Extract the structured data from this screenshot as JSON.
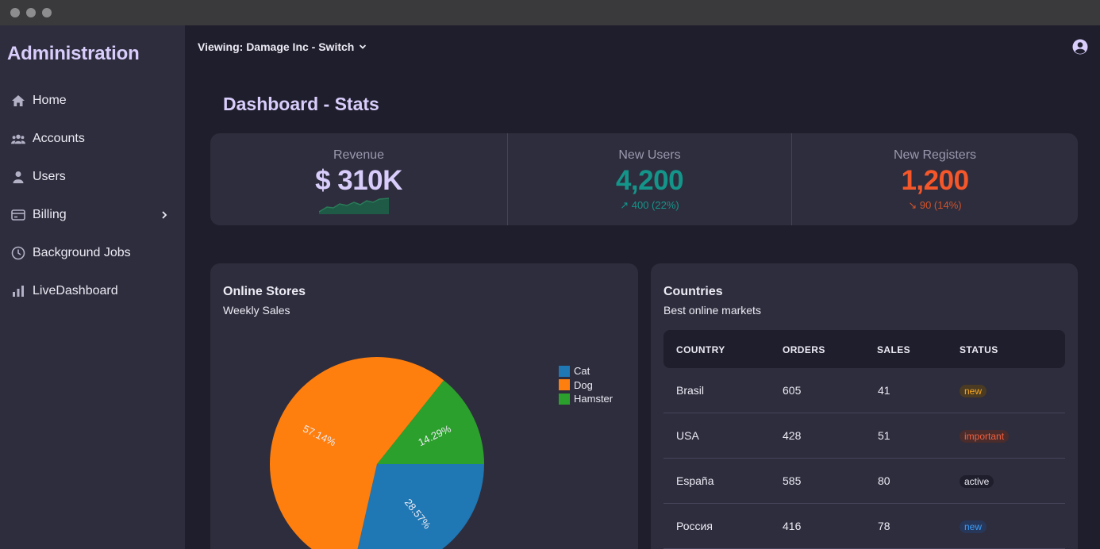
{
  "window": {
    "controls": [
      "close",
      "minimize",
      "zoom"
    ]
  },
  "sidebar": {
    "brand": "Administration",
    "items": [
      {
        "label": "Home",
        "icon": "home-icon"
      },
      {
        "label": "Accounts",
        "icon": "users-group-icon"
      },
      {
        "label": "Users",
        "icon": "user-icon"
      },
      {
        "label": "Billing",
        "icon": "credit-card-icon",
        "expandable": true
      },
      {
        "label": "Background Jobs",
        "icon": "clock-icon"
      },
      {
        "label": "LiveDashboard",
        "icon": "bar-chart-icon"
      }
    ]
  },
  "topbar": {
    "switch_label": "Viewing: Damage Inc - Switch",
    "avatar_icon": "user-circle-icon"
  },
  "page": {
    "title": "Dashboard - Stats"
  },
  "stats": [
    {
      "label": "Revenue",
      "value": "$ 310K",
      "color": "#d8cdfb",
      "trend": "sparkline"
    },
    {
      "label": "New Users",
      "value": "4,200",
      "delta": "↗ 400 (22%)",
      "color": "#14958a",
      "delta_color": "#14958a"
    },
    {
      "label": "New Registers",
      "value": "1,200",
      "delta": "↘ 90 (14%)",
      "color": "#f5572a",
      "delta_color": "#d0532c"
    }
  ],
  "online_stores": {
    "title": "Online Stores",
    "subtitle": "Weekly Sales"
  },
  "chart_data": {
    "type": "pie",
    "categories": [
      "Cat",
      "Dog",
      "Hamster"
    ],
    "values": [
      28.57,
      57.14,
      14.29
    ],
    "labels": [
      "28.57%",
      "57.14%",
      "14.29%"
    ],
    "colors": [
      "#1f77b4",
      "#ff7f0e",
      "#2ca02c"
    ],
    "legend": "top-right"
  },
  "countries": {
    "title": "Countries",
    "subtitle": "Best online markets",
    "columns": [
      "COUNTRY",
      "ORDERS",
      "SALES",
      "STATUS"
    ],
    "rows": [
      {
        "country": "Brasil",
        "orders": "605",
        "sales": "41",
        "status": "new",
        "status_color": "#f5a623",
        "status_bg": "#4a3b22"
      },
      {
        "country": "USA",
        "orders": "428",
        "sales": "51",
        "status": "important",
        "status_color": "#f06040",
        "status_bg": "#4a2c2c"
      },
      {
        "country": "España",
        "orders": "585",
        "sales": "80",
        "status": "active",
        "status_color": "#ecebf4",
        "status_bg": "#1f1e2c"
      },
      {
        "country": "Россия",
        "orders": "416",
        "sales": "78",
        "status": "new",
        "status_color": "#3b9cf5",
        "status_bg": "#27375a"
      }
    ]
  }
}
